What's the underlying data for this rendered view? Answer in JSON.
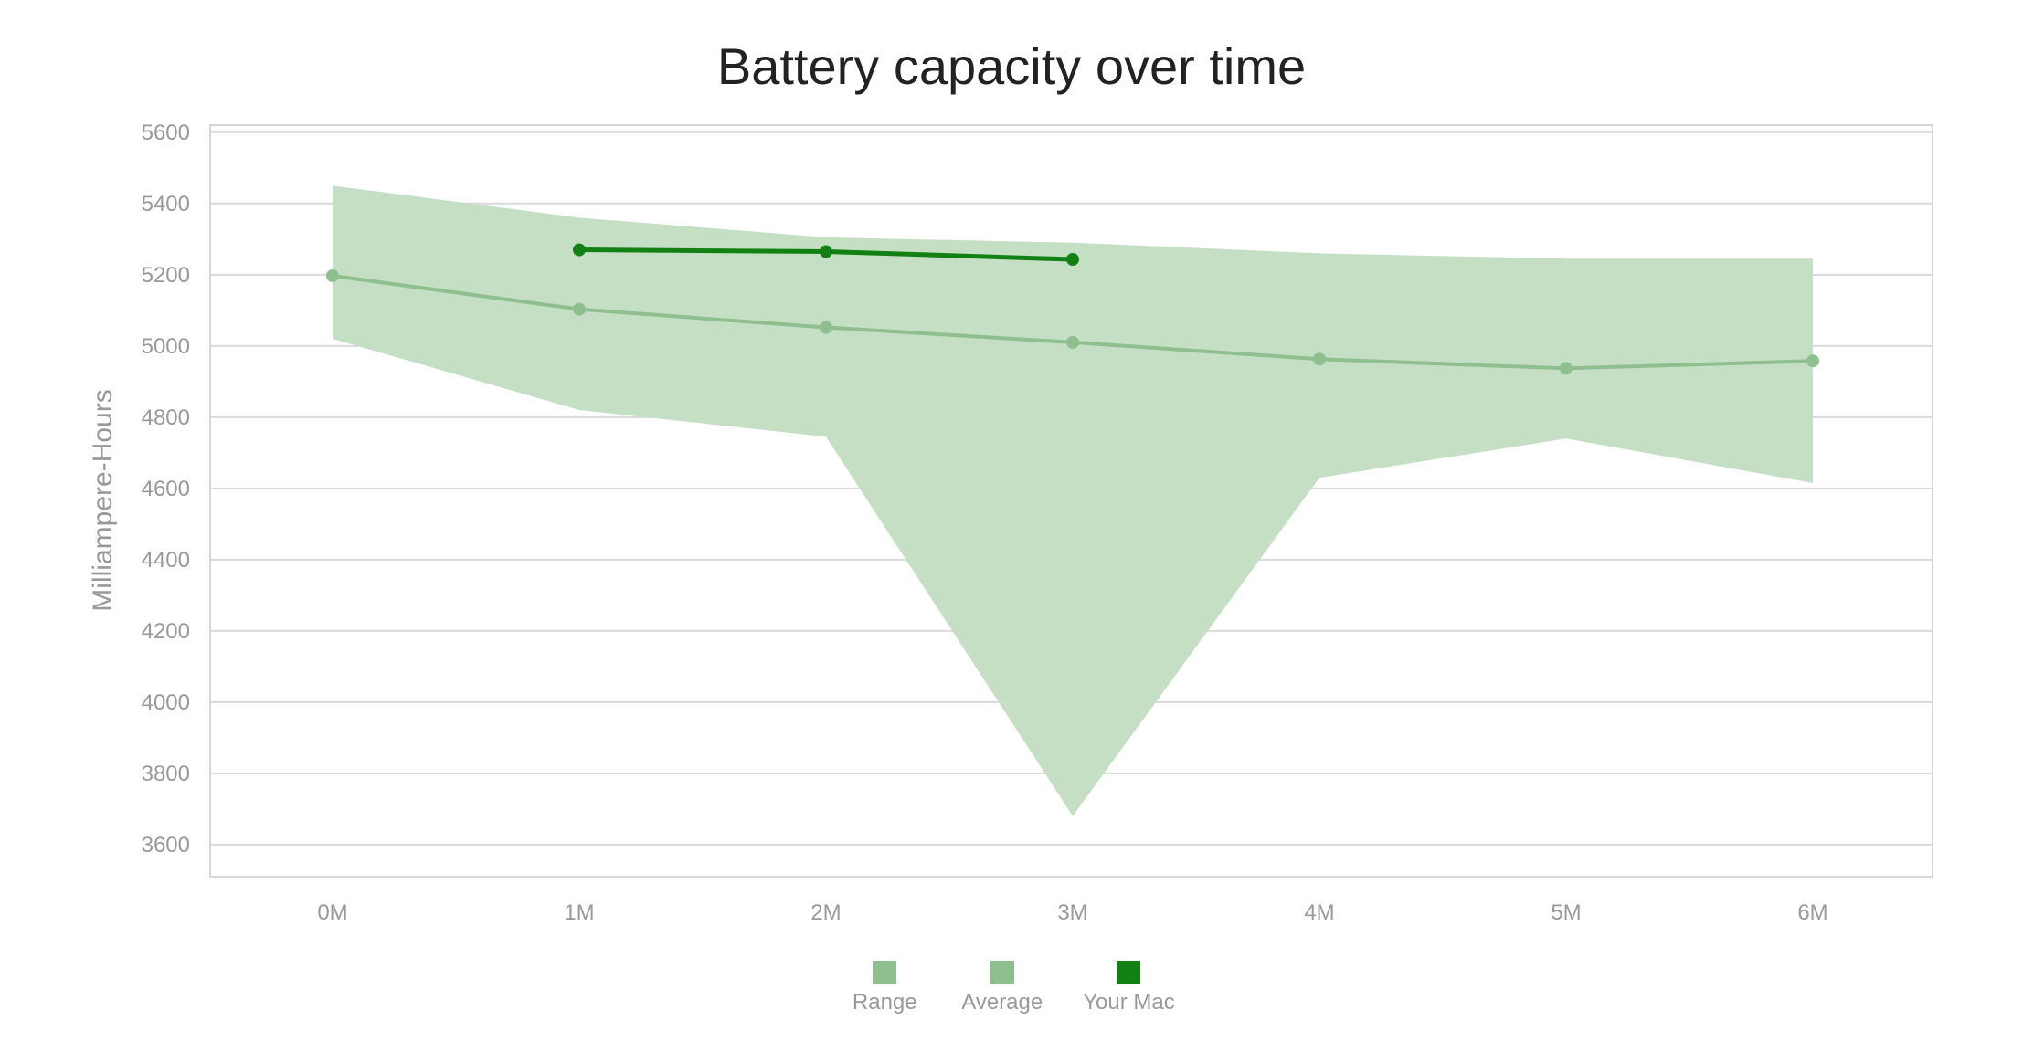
{
  "chart_data": {
    "type": "line",
    "title": "Battery capacity over time",
    "xlabel": "",
    "ylabel": "Milliampere-Hours",
    "categories": [
      "0M",
      "1M",
      "2M",
      "3M",
      "4M",
      "5M",
      "6M"
    ],
    "y_ticks": [
      3600,
      3800,
      4000,
      4200,
      4400,
      4600,
      4800,
      5000,
      5200,
      5400,
      5600
    ],
    "ylim": [
      3510,
      5620
    ],
    "grid": true,
    "legend_position": "bottom",
    "range": {
      "name": "Range",
      "color": "#c5dfc5",
      "swatch_color": "#8fbf8f",
      "low": [
        5020,
        4820,
        4745,
        3680,
        4630,
        4740,
        4615
      ],
      "high": [
        5450,
        5360,
        5305,
        5290,
        5260,
        5245,
        5245
      ]
    },
    "series": [
      {
        "name": "Average",
        "color": "#8fbf8f",
        "values": [
          5197,
          5103,
          5052,
          5010,
          4963,
          4937,
          4958
        ]
      },
      {
        "name": "Your Mac",
        "color": "#138013",
        "values": [
          null,
          5270,
          5265,
          5243,
          null,
          null,
          null
        ]
      }
    ]
  }
}
